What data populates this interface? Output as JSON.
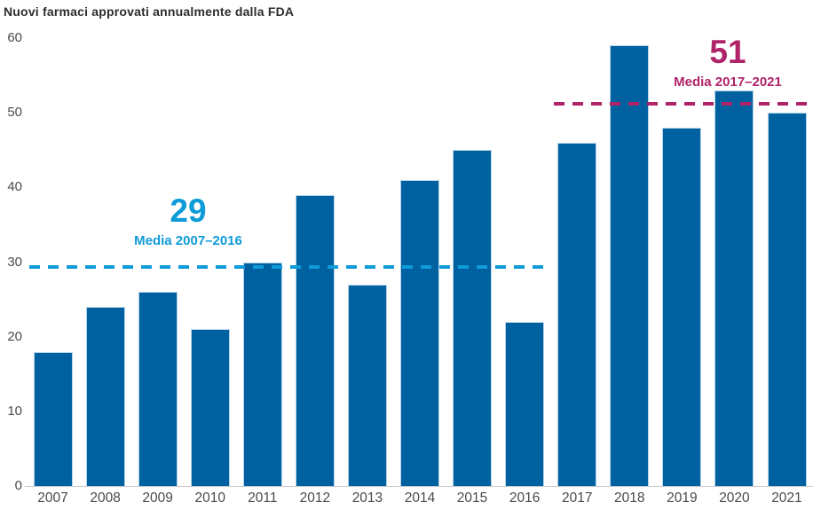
{
  "colors": {
    "background": "#FFFFFF",
    "bar": "#0061A1",
    "bar_edge": "#B5D3E8",
    "blue_accent": "#0F9BD8",
    "magenta_accent": "#B02368",
    "title_text": "#2D2D2D",
    "axis_text": "#4A4A4A",
    "axis_line": "#CCCCCC"
  },
  "chart_data": {
    "type": "bar",
    "title": "Nuovi farmaci approvati annualmente dalla FDA",
    "xlabel": "",
    "ylabel": "",
    "categories": [
      "2007",
      "2008",
      "2009",
      "2010",
      "2011",
      "2012",
      "2013",
      "2014",
      "2015",
      "2016",
      "2017",
      "2018",
      "2019",
      "2020",
      "2021"
    ],
    "values": [
      18,
      24,
      26,
      21,
      30,
      39,
      27,
      41,
      45,
      22,
      46,
      59,
      48,
      53,
      50
    ],
    "ylim": [
      0,
      60
    ],
    "yticks": [
      0,
      10,
      20,
      30,
      40,
      50,
      60
    ],
    "grid": false,
    "legend": false,
    "avg_lines": [
      {
        "display": "29",
        "label": "Media 2007–2016",
        "value": 29.3,
        "from_index": 0,
        "to_index": 9,
        "color_key": "blue_accent"
      },
      {
        "display": "51",
        "label": "Media 2017–2021",
        "value": 51.2,
        "from_index": 10,
        "to_index": 14,
        "color_key": "magenta_accent"
      }
    ]
  }
}
